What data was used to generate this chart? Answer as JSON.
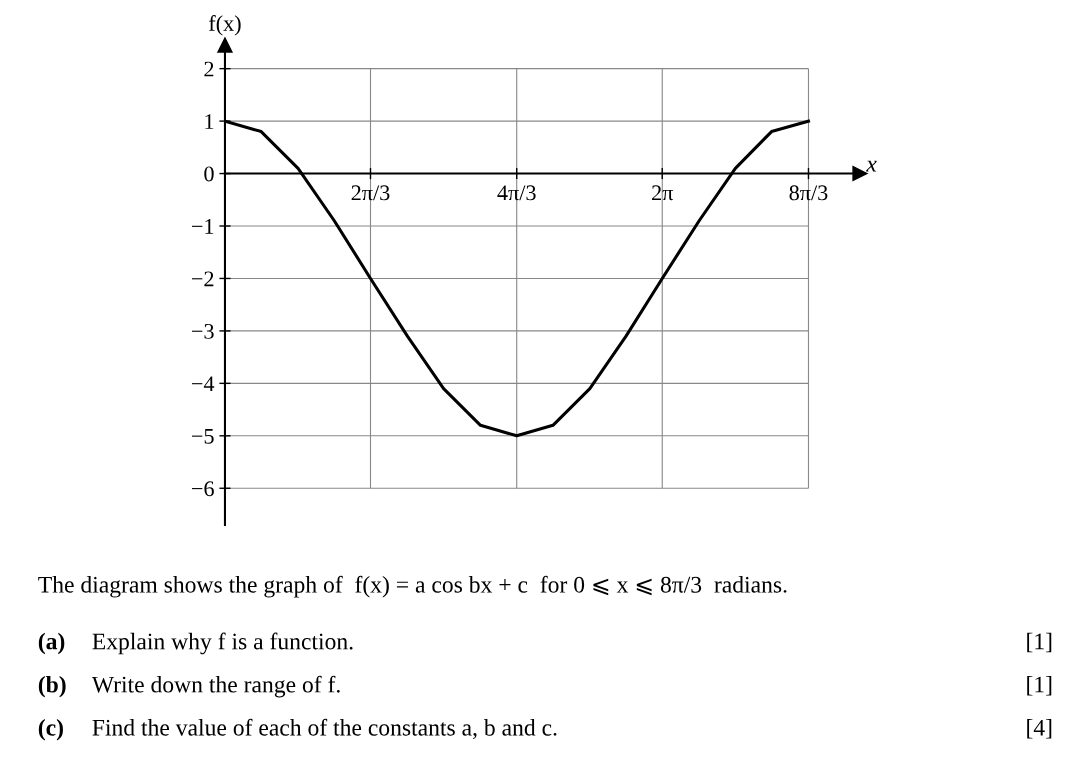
{
  "chart_data": {
    "type": "line",
    "xlabel": "x",
    "ylabel": "f(x)",
    "x": [
      0,
      0.52,
      1.05,
      1.57,
      2.09,
      2.62,
      3.14,
      3.67,
      4.19,
      4.71,
      5.24,
      5.76,
      6.28,
      6.81,
      7.33,
      7.85,
      8.38
    ],
    "series": [
      {
        "color": "#000000",
        "values": [
          1,
          0.8,
          0.1,
          -0.9,
          -2,
          -3.1,
          -4.1,
          -4.8,
          -5,
          -4.8,
          -4.1,
          -3.1,
          -2,
          -0.9,
          0.1,
          0.8,
          1
        ]
      }
    ],
    "xlim": [
      0,
      9.12
    ],
    "ylim": [
      -6.7,
      2.45
    ],
    "xticks": [
      {
        "value": 2.09,
        "label": "2π/3"
      },
      {
        "value": 4.19,
        "label": "4π/3"
      },
      {
        "value": 6.28,
        "label": "2π"
      },
      {
        "value": 8.38,
        "label": "8π/3"
      }
    ],
    "yticks": [
      {
        "value": -6,
        "label": "−6"
      },
      {
        "value": -5,
        "label": "−5"
      },
      {
        "value": -4,
        "label": "−4"
      },
      {
        "value": -3,
        "label": "−3"
      },
      {
        "value": -2,
        "label": "−2"
      },
      {
        "value": -1,
        "label": "−1"
      },
      {
        "value": 0,
        "label": "0"
      },
      {
        "value": 1,
        "label": "1"
      },
      {
        "value": 2,
        "label": "2"
      }
    ],
    "grid": true,
    "marker": "none",
    "line_style": "solid",
    "annotations": [
      "The diagram shows the graph of  f(x) = a cos bx + c  for 0 ⩽ x ⩽ 8π/3  radians.",
      "(a)",
      "Explain why f is a function.",
      "[1]",
      "(b)",
      "Write down the range of f.",
      "[1]",
      "(c)",
      "Find the value of each of the constants a, b and c.",
      "[4]"
    ]
  }
}
